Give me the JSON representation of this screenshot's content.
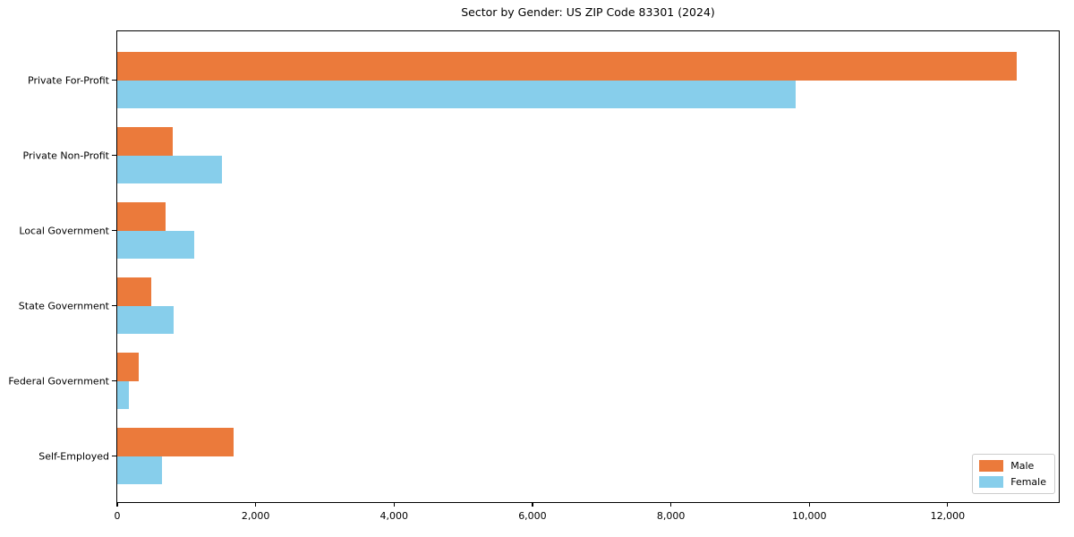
{
  "chart_data": {
    "type": "bar",
    "orientation": "horizontal",
    "title": "Sector by Gender: US ZIP Code 83301 (2024)",
    "categories": [
      "Private For-Profit",
      "Private Non-Profit",
      "Local Government",
      "State Government",
      "Federal Government",
      "Self-Employed"
    ],
    "series": [
      {
        "name": "Male",
        "color": "#EB7A3B",
        "values": [
          13000,
          800,
          700,
          490,
          310,
          1680
        ]
      },
      {
        "name": "Female",
        "color": "#87CEEB",
        "values": [
          9800,
          1510,
          1110,
          820,
          170,
          650
        ]
      }
    ],
    "xlabel": "",
    "ylabel": "",
    "xlim": [
      0,
      13600
    ],
    "x_ticks": [
      0,
      2000,
      4000,
      6000,
      8000,
      10000,
      12000
    ],
    "x_tick_labels": [
      "0",
      "2,000",
      "4,000",
      "6,000",
      "8,000",
      "10,000",
      "12,000"
    ],
    "legend": {
      "position": "lower right",
      "entries": [
        "Male",
        "Female"
      ]
    },
    "grid": false,
    "plot_background": "#ffffff",
    "spine_color": "#000000"
  }
}
